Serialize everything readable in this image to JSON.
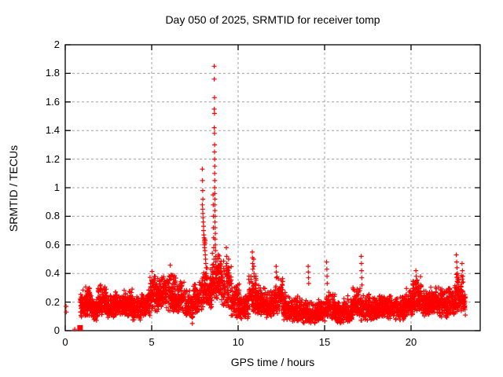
{
  "chart_data": {
    "type": "scatter",
    "title": "Day 050 of 2025, SRMTID for receiver tomp",
    "xlabel": "GPS time / hours",
    "ylabel": "SRMTID / TECUs",
    "xlim": [
      0,
      24
    ],
    "ylim": [
      0,
      2
    ],
    "xticks": [
      {
        "v": 0,
        "label": "0"
      },
      {
        "v": 5,
        "label": "5"
      },
      {
        "v": 10,
        "label": "10"
      },
      {
        "v": 15,
        "label": "15"
      },
      {
        "v": 20,
        "label": "20"
      }
    ],
    "yticks": [
      {
        "v": 0,
        "label": "0"
      },
      {
        "v": 0.2,
        "label": "0.2"
      },
      {
        "v": 0.4,
        "label": "0.4"
      },
      {
        "v": 0.6,
        "label": "0.6"
      },
      {
        "v": 0.8,
        "label": "0.8"
      },
      {
        "v": 1,
        "label": "1"
      },
      {
        "v": 1.2,
        "label": "1.2"
      },
      {
        "v": 1.4,
        "label": "1.4"
      },
      {
        "v": 1.6,
        "label": "1.6"
      },
      {
        "v": 1.8,
        "label": "1.8"
      },
      {
        "v": 2,
        "label": "2"
      }
    ],
    "grid": true,
    "legend": "none",
    "marker": "plus",
    "point_color": "#ff0000",
    "grid_color": "#a0a0a0",
    "border_color": "#000000",
    "band_segments": [
      [
        0.88,
        1.1,
        0.08,
        0.3,
        50
      ],
      [
        1.1,
        1.5,
        0.1,
        0.32,
        95
      ],
      [
        1.5,
        1.9,
        0.07,
        0.24,
        90
      ],
      [
        1.9,
        2.4,
        0.1,
        0.33,
        100
      ],
      [
        2.4,
        2.9,
        0.09,
        0.26,
        95
      ],
      [
        2.9,
        3.4,
        0.1,
        0.3,
        95
      ],
      [
        3.4,
        3.9,
        0.09,
        0.32,
        95
      ],
      [
        3.9,
        4.4,
        0.07,
        0.24,
        90
      ],
      [
        4.4,
        4.9,
        0.1,
        0.3,
        90
      ],
      [
        4.9,
        5.4,
        0.13,
        0.42,
        95
      ],
      [
        5.4,
        5.9,
        0.14,
        0.4,
        95
      ],
      [
        5.9,
        6.4,
        0.12,
        0.48,
        95
      ],
      [
        6.4,
        6.9,
        0.12,
        0.36,
        90
      ],
      [
        6.9,
        7.4,
        0.06,
        0.3,
        70
      ],
      [
        7.4,
        7.9,
        0.12,
        0.36,
        80
      ],
      [
        7.9,
        8.5,
        0.15,
        0.45,
        110
      ],
      [
        8.5,
        9.0,
        0.22,
        0.55,
        100
      ],
      [
        9.0,
        9.6,
        0.15,
        0.5,
        90
      ],
      [
        9.6,
        10.1,
        0.08,
        0.35,
        90
      ],
      [
        10.1,
        10.6,
        0.08,
        0.28,
        90
      ],
      [
        10.6,
        11.1,
        0.12,
        0.45,
        95
      ],
      [
        11.1,
        11.6,
        0.1,
        0.33,
        90
      ],
      [
        11.6,
        12.1,
        0.09,
        0.3,
        90
      ],
      [
        12.1,
        12.6,
        0.11,
        0.38,
        90
      ],
      [
        12.6,
        13.1,
        0.07,
        0.28,
        90
      ],
      [
        13.1,
        13.6,
        0.06,
        0.26,
        85
      ],
      [
        13.6,
        14.1,
        0.05,
        0.24,
        85
      ],
      [
        14.1,
        14.6,
        0.05,
        0.21,
        85
      ],
      [
        14.6,
        15.1,
        0.06,
        0.23,
        85
      ],
      [
        15.1,
        15.6,
        0.07,
        0.28,
        85
      ],
      [
        15.6,
        16.1,
        0.05,
        0.22,
        85
      ],
      [
        16.1,
        16.6,
        0.06,
        0.25,
        85
      ],
      [
        16.6,
        17.1,
        0.09,
        0.33,
        90
      ],
      [
        17.1,
        17.6,
        0.07,
        0.27,
        90
      ],
      [
        17.6,
        18.1,
        0.07,
        0.24,
        90
      ],
      [
        18.1,
        18.6,
        0.09,
        0.27,
        90
      ],
      [
        18.6,
        19.1,
        0.08,
        0.26,
        90
      ],
      [
        19.1,
        19.6,
        0.07,
        0.25,
        90
      ],
      [
        19.6,
        20.1,
        0.1,
        0.3,
        90
      ],
      [
        20.1,
        20.6,
        0.12,
        0.38,
        95
      ],
      [
        20.6,
        21.1,
        0.1,
        0.3,
        90
      ],
      [
        21.1,
        21.6,
        0.12,
        0.33,
        95
      ],
      [
        21.6,
        22.1,
        0.09,
        0.3,
        95
      ],
      [
        22.1,
        22.6,
        0.11,
        0.34,
        95
      ],
      [
        22.6,
        23.0,
        0.12,
        0.42,
        85
      ],
      [
        23.0,
        23.15,
        0.1,
        0.3,
        25
      ]
    ],
    "points": [
      [
        0.05,
        0.17
      ],
      [
        0.06,
        0.13
      ],
      [
        0.55,
        0.01
      ],
      [
        7.35,
        0.05
      ],
      [
        7.93,
        1.13
      ],
      [
        7.94,
        1.05
      ],
      [
        7.95,
        0.98
      ],
      [
        7.96,
        0.92
      ],
      [
        7.93,
        0.88
      ],
      [
        7.95,
        0.85
      ],
      [
        7.96,
        0.82
      ],
      [
        7.97,
        0.79
      ],
      [
        7.98,
        0.76
      ],
      [
        8.0,
        0.73
      ],
      [
        8.0,
        0.7
      ],
      [
        8.02,
        0.67
      ],
      [
        8.03,
        0.65
      ],
      [
        8.05,
        0.63
      ],
      [
        8.06,
        0.62
      ],
      [
        8.07,
        0.64
      ],
      [
        8.08,
        0.61
      ],
      [
        8.09,
        0.63
      ],
      [
        8.05,
        0.6
      ],
      [
        8.06,
        0.58
      ],
      [
        8.08,
        0.56
      ],
      [
        8.1,
        0.53
      ],
      [
        8.12,
        0.5
      ],
      [
        8.13,
        0.47
      ],
      [
        8.15,
        0.44
      ],
      [
        8.17,
        0.4
      ],
      [
        8.2,
        0.36
      ],
      [
        8.22,
        0.32
      ],
      [
        8.62,
        1.85
      ],
      [
        8.62,
        1.76
      ],
      [
        8.63,
        1.63
      ],
      [
        8.62,
        1.55
      ],
      [
        8.63,
        1.52
      ],
      [
        8.62,
        1.42
      ],
      [
        8.63,
        1.38
      ],
      [
        8.64,
        1.3
      ],
      [
        8.63,
        1.25
      ],
      [
        8.64,
        1.2
      ],
      [
        8.65,
        1.15
      ],
      [
        8.64,
        1.1
      ],
      [
        8.65,
        1.05
      ],
      [
        8.64,
        1.0
      ],
      [
        8.65,
        0.96
      ],
      [
        8.66,
        0.92
      ],
      [
        8.65,
        0.88
      ],
      [
        8.66,
        0.84
      ],
      [
        8.67,
        0.8
      ],
      [
        8.66,
        0.76
      ],
      [
        8.67,
        0.72
      ],
      [
        8.68,
        0.68
      ],
      [
        8.67,
        0.64
      ],
      [
        8.68,
        0.6
      ],
      [
        8.69,
        0.56
      ],
      [
        8.7,
        0.52
      ],
      [
        8.71,
        0.48
      ],
      [
        8.72,
        0.44
      ],
      [
        8.73,
        0.4
      ],
      [
        8.75,
        0.36
      ],
      [
        8.55,
        0.95
      ],
      [
        8.56,
        0.88
      ],
      [
        8.57,
        0.8
      ],
      [
        8.57,
        0.72
      ],
      [
        8.58,
        0.65
      ],
      [
        8.59,
        0.58
      ],
      [
        8.6,
        0.5
      ],
      [
        9.32,
        0.58
      ],
      [
        9.33,
        0.52
      ],
      [
        9.34,
        0.47
      ],
      [
        9.35,
        0.42
      ],
      [
        9.36,
        0.38
      ],
      [
        9.45,
        0.5
      ],
      [
        9.46,
        0.44
      ],
      [
        9.47,
        0.39
      ],
      [
        10.82,
        0.55
      ],
      [
        10.83,
        0.51
      ],
      [
        10.84,
        0.47
      ],
      [
        10.85,
        0.43
      ],
      [
        10.9,
        0.5
      ],
      [
        10.91,
        0.45
      ],
      [
        10.92,
        0.4
      ],
      [
        12.2,
        0.45
      ],
      [
        12.21,
        0.41
      ],
      [
        12.22,
        0.37
      ],
      [
        14.05,
        0.45
      ],
      [
        14.06,
        0.41
      ],
      [
        14.07,
        0.37
      ],
      [
        14.08,
        0.33
      ],
      [
        15.12,
        0.48
      ],
      [
        15.13,
        0.43
      ],
      [
        15.14,
        0.38
      ],
      [
        15.15,
        0.33
      ],
      [
        17.12,
        0.52
      ],
      [
        17.13,
        0.47
      ],
      [
        17.14,
        0.42
      ],
      [
        17.15,
        0.37
      ],
      [
        17.16,
        0.32
      ],
      [
        20.28,
        0.42
      ],
      [
        20.3,
        0.38
      ],
      [
        20.32,
        0.34
      ],
      [
        22.62,
        0.53
      ],
      [
        22.64,
        0.48
      ],
      [
        22.66,
        0.44
      ],
      [
        22.68,
        0.4
      ],
      [
        22.7,
        0.36
      ],
      [
        22.95,
        0.47
      ],
      [
        22.97,
        0.42
      ],
      [
        23.0,
        0.38
      ],
      [
        23.02,
        0.34
      ]
    ],
    "square_marker": {
      "x": 0.86,
      "y": 0.02
    }
  }
}
